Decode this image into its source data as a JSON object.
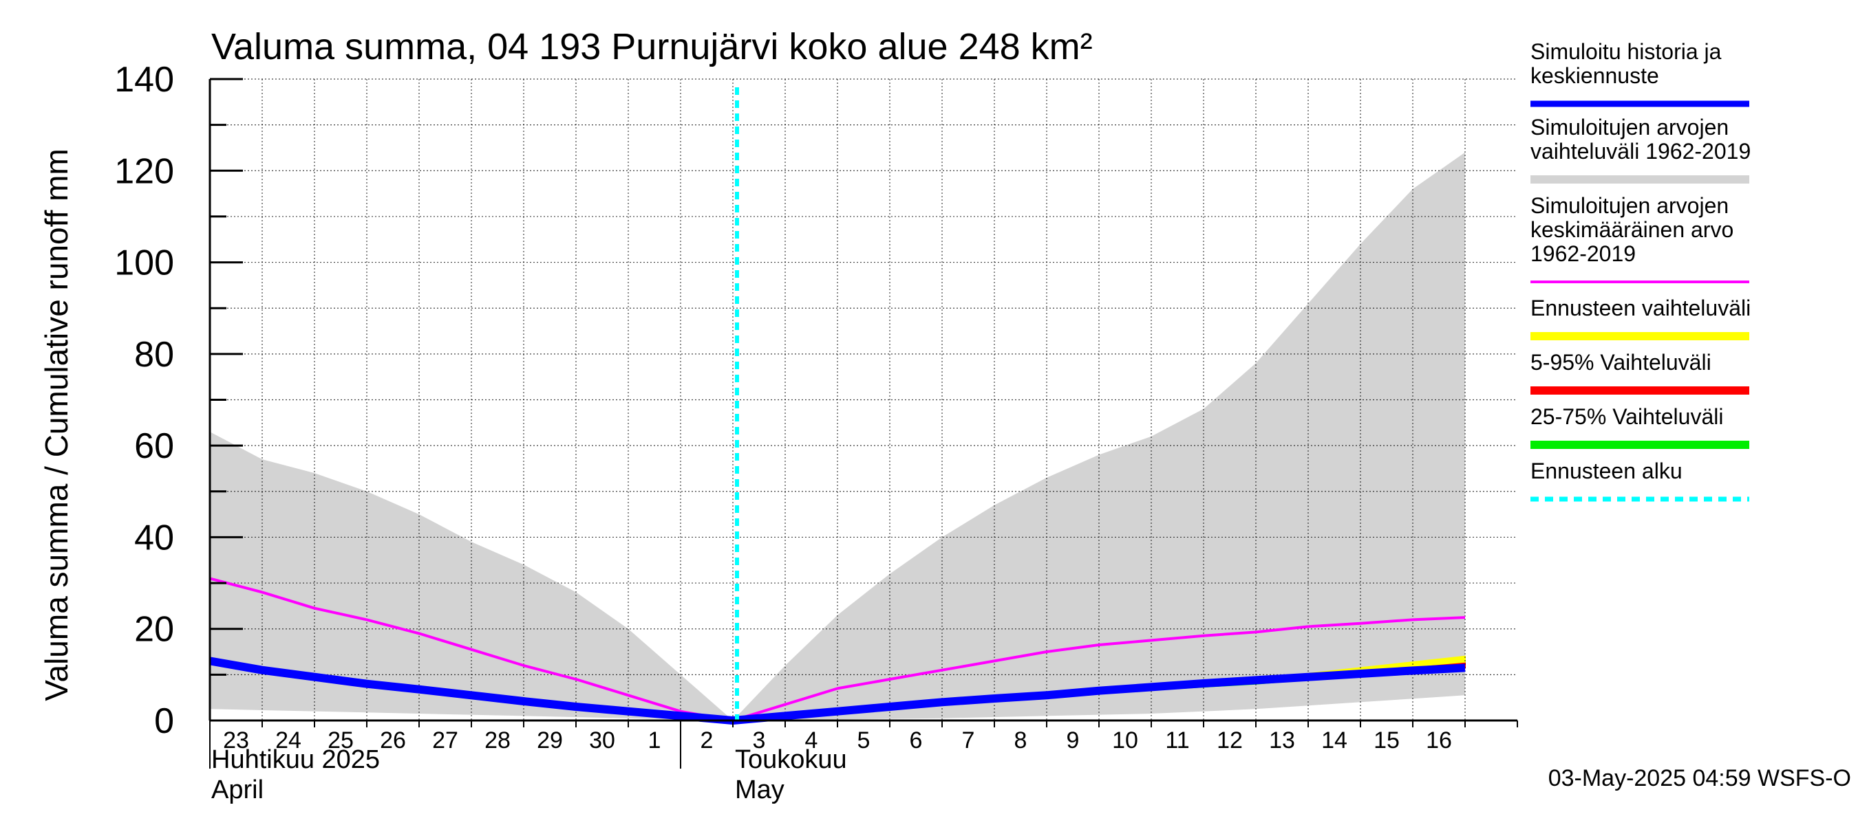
{
  "chart_data": {
    "type": "line",
    "title": "Valuma summa, 04 193 Purnujärvi koko alue 248 km²",
    "ylabel": "Valuma summa / Cumulative runoff    mm",
    "ylim": [
      0,
      140
    ],
    "yticks": [
      0,
      20,
      40,
      60,
      80,
      100,
      120,
      140
    ],
    "xrange": [
      "2025-04-22",
      "2025-05-16"
    ],
    "x_tick_labels": [
      "23",
      "24",
      "25",
      "26",
      "27",
      "28",
      "29",
      "30",
      "1",
      "2",
      "3",
      "4",
      "5",
      "6",
      "7",
      "8",
      "9",
      "10",
      "11",
      "12",
      "13",
      "14",
      "15",
      "16"
    ],
    "month_labels": [
      {
        "line1": "Huhtikuu  2025",
        "line2": "April"
      },
      {
        "line1": "Toukokuu",
        "line2": "May"
      }
    ],
    "grid": true,
    "forecast_start": "2025-05-02",
    "colors": {
      "history": "#0000ff",
      "range": "#d3d3d3",
      "mean": "#ff00ff",
      "forecast_range": "#ffff00",
      "p5_95": "#ff0000",
      "p25_75": "#00ee00",
      "forecast_start": "#00ffff"
    },
    "series": {
      "range_upper": {
        "x": [
          "2025-04-22",
          "2025-04-23",
          "2025-04-24",
          "2025-04-25",
          "2025-04-26",
          "2025-04-27",
          "2025-04-28",
          "2025-04-29",
          "2025-04-30",
          "2025-05-01",
          "2025-05-02",
          "2025-05-03",
          "2025-05-04",
          "2025-05-05",
          "2025-05-06",
          "2025-05-07",
          "2025-05-08",
          "2025-05-09",
          "2025-05-10",
          "2025-05-11",
          "2025-05-12",
          "2025-05-13",
          "2025-05-14",
          "2025-05-15",
          "2025-05-16"
        ],
        "values": [
          63,
          57,
          54,
          50,
          45,
          39,
          34,
          28,
          20,
          10,
          0,
          12,
          23,
          32,
          40,
          47,
          53,
          58,
          62,
          68,
          78,
          91,
          104,
          116,
          124
        ]
      },
      "range_lower": {
        "x": [
          "2025-04-22",
          "2025-04-26",
          "2025-04-30",
          "2025-05-02",
          "2025-05-06",
          "2025-05-10",
          "2025-05-12",
          "2025-05-14",
          "2025-05-16"
        ],
        "values": [
          2.5,
          1.5,
          0.5,
          0,
          0.5,
          1.5,
          2.5,
          4,
          5.5
        ]
      },
      "mean": {
        "name": "Simuloitujen arvojen keskimääräinen arvo 1962-2019",
        "x": [
          "2025-04-22",
          "2025-04-23",
          "2025-04-24",
          "2025-04-25",
          "2025-04-26",
          "2025-04-27",
          "2025-04-28",
          "2025-04-29",
          "2025-04-30",
          "2025-05-01",
          "2025-05-02",
          "2025-05-03",
          "2025-05-04",
          "2025-05-05",
          "2025-05-06",
          "2025-05-07",
          "2025-05-08",
          "2025-05-09",
          "2025-05-10",
          "2025-05-11",
          "2025-05-12",
          "2025-05-13",
          "2025-05-14",
          "2025-05-15",
          "2025-05-16"
        ],
        "values": [
          31,
          28,
          24.5,
          22,
          19,
          15.5,
          12,
          9,
          5.5,
          2,
          0,
          3.5,
          7,
          9,
          11,
          13,
          15,
          16.5,
          17.5,
          18.5,
          19.3,
          20.5,
          21.2,
          22,
          22.5
        ]
      },
      "forecast_range_upper": {
        "x": [
          "2025-05-09",
          "2025-05-12",
          "2025-05-14",
          "2025-05-16"
        ],
        "values": [
          6.5,
          9,
          11.5,
          14
        ]
      },
      "p5_95_upper": {
        "x": [
          "2025-05-09",
          "2025-05-12",
          "2025-05-14",
          "2025-05-16"
        ],
        "values": [
          6.2,
          8.4,
          10.5,
          12.5
        ]
      },
      "p25_75_upper": {
        "x": [
          "2025-05-09",
          "2025-05-12",
          "2025-05-14",
          "2025-05-16"
        ],
        "values": [
          6.0,
          8.0,
          9.8,
          11.5
        ]
      },
      "history": {
        "name": "Simuloitu historia ja keskiennuste",
        "x": [
          "2025-04-22",
          "2025-04-23",
          "2025-04-24",
          "2025-04-25",
          "2025-04-26",
          "2025-04-27",
          "2025-04-28",
          "2025-04-29",
          "2025-04-30",
          "2025-05-01",
          "2025-05-02",
          "2025-05-03",
          "2025-05-04",
          "2025-05-05",
          "2025-05-06",
          "2025-05-07",
          "2025-05-08",
          "2025-05-09",
          "2025-05-10",
          "2025-05-11",
          "2025-05-12",
          "2025-05-13",
          "2025-05-14",
          "2025-05-15",
          "2025-05-16"
        ],
        "values": [
          13,
          11,
          9.5,
          8,
          6.8,
          5.5,
          4.2,
          3,
          2,
          1,
          0,
          1,
          2,
          3,
          4,
          4.8,
          5.5,
          6.5,
          7.3,
          8.1,
          8.8,
          9.5,
          10.2,
          10.9,
          11.5
        ]
      }
    },
    "legend": [
      {
        "label": "Simuloitu historia ja keskiennuste",
        "color": "#0000ff",
        "style": "solid"
      },
      {
        "label": "Simuloitujen arvojen vaihteluväli 1962-2019",
        "color": "#d3d3d3",
        "style": "solid"
      },
      {
        "label": "Simuloitujen arvojen keskimääräinen arvo 1962-2019",
        "color": "#ff00ff",
        "style": "solid"
      },
      {
        "label": "Ennusteen vaihteluväli",
        "color": "#ffff00",
        "style": "solid"
      },
      {
        "label": "5-95% Vaihteluväli",
        "color": "#ff0000",
        "style": "solid"
      },
      {
        "label": "25-75% Vaihteluväli",
        "color": "#00ee00",
        "style": "solid"
      },
      {
        "label": "Ennusteen alku",
        "color": "#00ffff",
        "style": "dashed"
      }
    ]
  },
  "legend_text": {
    "history": [
      "Simuloitu historia ja",
      "keskiennuste"
    ],
    "range": [
      "Simuloitujen arvojen",
      "vaihteluväli 1962-2019"
    ],
    "mean": [
      "Simuloitujen arvojen",
      "keskimääräinen arvo",
      "   1962-2019"
    ],
    "forecast_range": [
      "Ennusteen vaihteluväli"
    ],
    "p5_95": [
      "5-95% Vaihteluväli"
    ],
    "p25_75": [
      "25-75% Vaihteluväli"
    ],
    "forecast_start": [
      "Ennusteen alku"
    ]
  },
  "footer": "03-May-2025 04:59 WSFS-O"
}
